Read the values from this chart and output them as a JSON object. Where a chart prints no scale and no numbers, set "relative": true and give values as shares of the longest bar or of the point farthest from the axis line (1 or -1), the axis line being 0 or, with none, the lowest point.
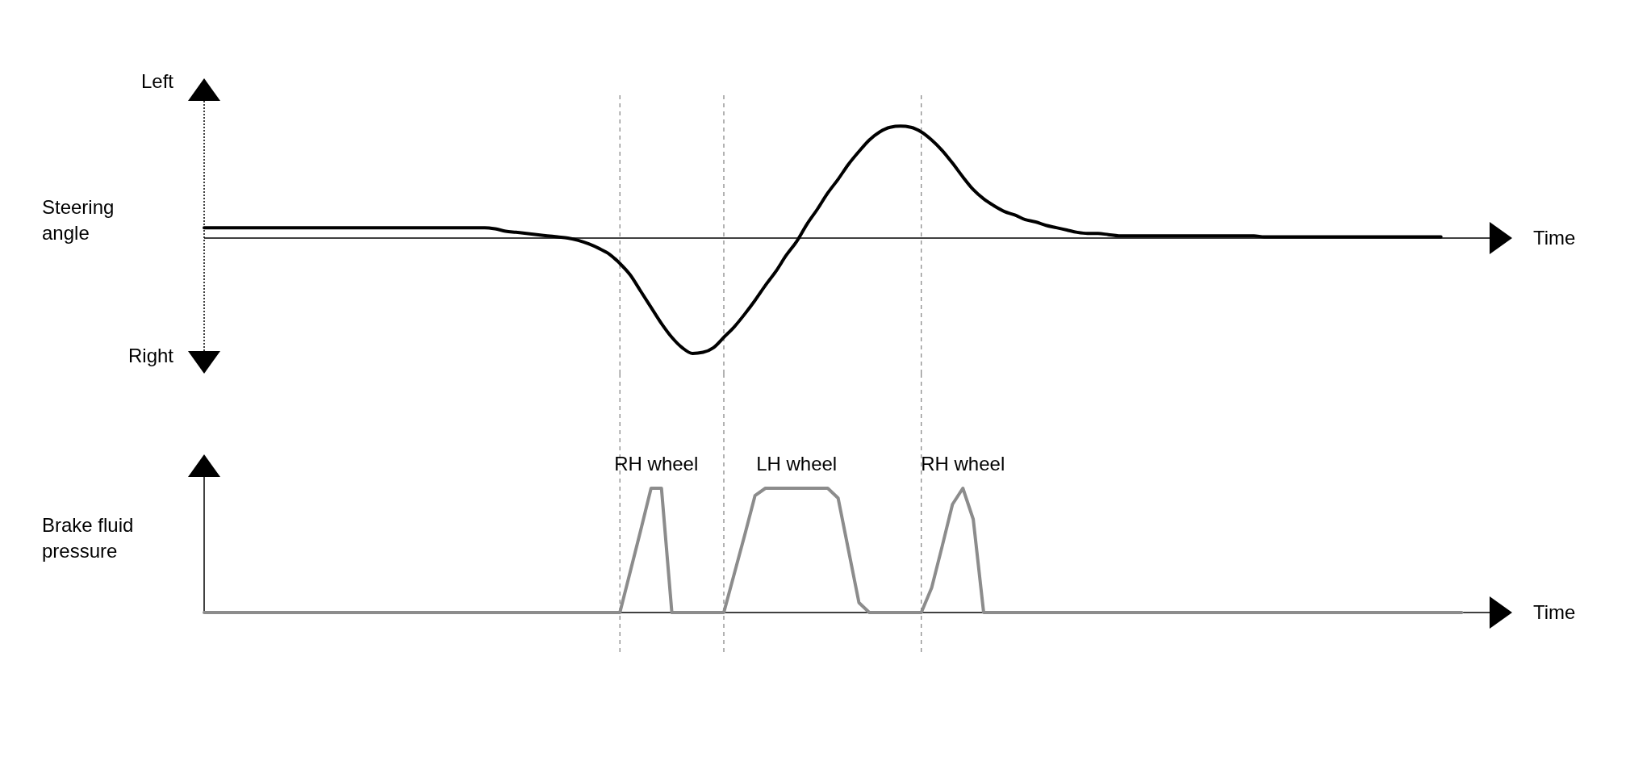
{
  "chart_data": [
    {
      "type": "line",
      "relative": true,
      "grid": "x",
      "ylabel": "Steering angle",
      "xlabel": "Time",
      "annotations": [
        "Left",
        "Right"
      ],
      "categories": [
        null,
        null,
        null,
        null,
        null,
        null,
        null,
        null,
        null,
        null,
        null,
        null,
        null,
        null,
        null,
        null,
        null,
        null,
        null,
        null,
        null,
        null,
        null,
        null,
        null,
        null,
        null,
        null,
        null,
        null,
        null,
        null,
        null,
        null,
        null,
        null,
        null,
        null,
        null,
        null,
        null,
        null,
        null,
        null,
        null,
        null,
        null,
        null,
        null,
        null,
        null,
        null,
        null,
        null,
        null,
        null,
        null,
        null,
        null,
        null,
        null,
        null,
        null,
        null,
        null,
        null,
        null,
        null,
        null,
        null,
        null,
        null,
        null,
        null,
        null,
        null,
        null,
        null,
        null,
        null,
        null,
        null,
        null,
        null,
        null,
        null,
        null,
        null,
        null,
        null,
        null,
        null,
        null,
        null,
        null,
        null,
        null,
        null,
        null,
        null,
        null,
        null,
        null,
        null,
        null,
        null,
        null,
        null,
        null,
        null,
        null,
        null,
        null,
        null,
        null,
        null,
        null,
        null,
        null,
        null,
        null,
        null
      ],
      "series": [
        {
          "color": "#000000",
          "values": [
            0.09,
            0.09,
            0.09,
            0.09,
            0.09,
            0.09,
            0.09,
            0.09,
            0.09,
            0.09,
            0.09,
            0.09,
            0.09,
            0.09,
            0.09,
            0.09,
            0.09,
            0.09,
            0.09,
            0.09,
            0.09,
            0.09,
            0.09,
            0.09,
            0.09,
            0.09,
            0.09,
            0.09,
            0.08,
            0.06,
            0.05,
            0.04,
            0.03,
            0.02,
            0.01,
            0,
            -0.02,
            -0.05,
            -0.09,
            -0.14,
            -0.22,
            -0.32,
            -0.46,
            -0.6,
            -0.74,
            -0.86,
            -0.95,
            -1,
            -0.99,
            -0.95,
            -0.86,
            -0.77,
            -0.66,
            -0.54,
            -0.41,
            -0.29,
            -0.15,
            -0.03,
            0.12,
            0.25,
            0.39,
            0.51,
            0.64,
            0.75,
            0.85,
            0.92,
            0.96,
            0.97,
            0.96,
            0.92,
            0.85,
            0.76,
            0.65,
            0.53,
            0.42,
            0.34,
            0.28,
            0.23,
            0.2,
            0.16,
            0.14,
            0.11,
            0.09,
            0.07,
            0.05,
            0.04,
            0.04,
            0.03,
            0.02,
            0.02,
            0.02,
            0.02,
            0.02,
            0.02,
            0.02,
            0.02,
            0.02,
            0.02,
            0.02,
            0.02,
            0.02,
            0.02,
            0.01,
            0.01,
            0.01,
            0.01,
            0.01,
            0.01,
            0.01,
            0.01,
            0.01,
            0.01,
            0.01,
            0.01,
            0.01,
            0.01,
            0.01,
            0.01,
            0.01,
            0.01,
            null,
            null
          ]
        }
      ]
    },
    {
      "type": "line",
      "relative": true,
      "grid": "x",
      "ylabel": "Brake fluid pressure",
      "xlabel": "Time",
      "annotations": [
        "RH wheel",
        "LH wheel",
        "RH wheel"
      ],
      "categories": [
        null,
        null,
        null,
        null,
        null,
        null,
        null,
        null,
        null,
        null,
        null,
        null,
        null,
        null,
        null,
        null,
        null,
        null,
        null,
        null,
        null,
        null,
        null,
        null,
        null,
        null,
        null,
        null,
        null,
        null,
        null,
        null,
        null,
        null,
        null,
        null,
        null,
        null,
        null,
        null,
        null,
        null,
        null,
        null,
        null,
        null,
        null,
        null,
        null,
        null,
        null,
        null,
        null,
        null,
        null,
        null,
        null,
        null,
        null,
        null,
        null,
        null,
        null,
        null,
        null,
        null,
        null,
        null,
        null,
        null,
        null,
        null,
        null,
        null,
        null,
        null,
        null,
        null,
        null,
        null,
        null,
        null,
        null,
        null,
        null,
        null,
        null,
        null,
        null,
        null,
        null,
        null,
        null,
        null,
        null,
        null,
        null,
        null,
        null,
        null,
        null,
        null,
        null,
        null,
        null,
        null,
        null,
        null,
        null,
        null,
        null,
        null,
        null,
        null,
        null,
        null,
        null,
        null,
        null,
        null,
        null,
        null
      ],
      "series": [
        {
          "color": "#8c8c8c",
          "values": [
            0,
            0,
            0,
            0,
            0,
            0,
            0,
            0,
            0,
            0,
            0,
            0,
            0,
            0,
            0,
            0,
            0,
            0,
            0,
            0,
            0,
            0,
            0,
            0,
            0,
            0,
            0,
            0,
            0,
            0,
            0,
            0,
            0,
            0,
            0,
            0,
            0,
            0,
            0,
            0,
            0,
            0.33,
            0.66,
            1,
            1,
            0,
            0,
            0,
            0,
            0,
            0,
            0.31,
            0.62,
            0.94,
            1,
            1,
            1,
            1,
            1,
            1,
            1,
            0.92,
            0.5,
            0.08,
            0,
            0,
            0,
            0,
            0,
            0,
            0.2,
            0.53,
            0.87,
            1,
            0.75,
            0,
            0,
            0,
            0,
            0,
            0,
            0,
            0,
            0,
            0,
            0,
            0,
            0,
            0,
            0,
            0,
            0,
            0,
            0,
            0,
            0,
            0,
            0,
            0,
            0,
            0,
            0,
            0,
            0,
            0,
            0,
            0,
            0,
            0,
            0,
            0,
            0,
            0,
            0,
            0,
            0,
            0,
            0,
            0,
            0,
            0,
            0
          ]
        }
      ]
    }
  ]
}
